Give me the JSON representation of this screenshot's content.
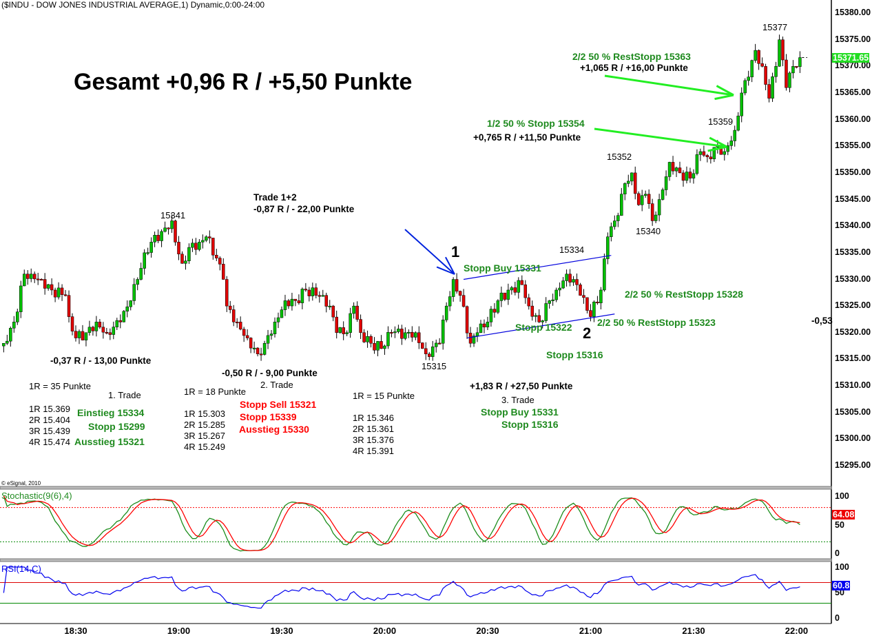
{
  "header": {
    "title": "($INDU - DOW JONES INDUSTRIAL AVERAGE,1) Dynamic,0:00-24:00",
    "copyright": "© eSignal, 2010"
  },
  "colors": {
    "up": "#00c000",
    "down": "#e00000",
    "annotation_green": "#1e8a1e",
    "annotation_red": "#ff0000",
    "arrow_green": "#22ee22",
    "arrow_blue": "#0022dd",
    "last_price_tag": "#22dd22",
    "stoch_tag": "#ee0000",
    "rsi_tag": "#0000ee"
  },
  "chart_data": {
    "type": "candlestick",
    "title": "($INDU - DOW JONES INDUSTRIAL AVERAGE,1) Dynamic,0:00-24:00",
    "x_unit": "minutes after 18:00 (1-minute bars)",
    "keyframes_minute": [
      9,
      12,
      15,
      17,
      20,
      23,
      27,
      28,
      30,
      33,
      36,
      39,
      43,
      46,
      48,
      50,
      52,
      55,
      58,
      59,
      61,
      63,
      66,
      68,
      71,
      73,
      74,
      77,
      80,
      83,
      85,
      88,
      91,
      94,
      97,
      100,
      102,
      104,
      106,
      109,
      111,
      113,
      116,
      119,
      122,
      126,
      129,
      132,
      136,
      138,
      140,
      142,
      145,
      147,
      150,
      153,
      156,
      160,
      162,
      165,
      168,
      170,
      173,
      175,
      177,
      180,
      183,
      185,
      188,
      190,
      192,
      194,
      196,
      198,
      200,
      203,
      206,
      209,
      212,
      214,
      217,
      219,
      222,
      224,
      226,
      228,
      230,
      232,
      234,
      235,
      237,
      239,
      241
    ],
    "keyframes_close": [
      15318,
      15322,
      15331,
      15331,
      15330,
      15328,
      15327,
      15323,
      15319,
      15320,
      15322,
      15320,
      15322,
      15326,
      15330,
      15335,
      15337,
      15339,
      15341,
      15337,
      15333,
      15336,
      15337,
      15338,
      15334,
      15330,
      15325,
      15322,
      15319,
      15316,
      15318,
      15322,
      15326,
      15326,
      15328,
      15327,
      15327,
      15325,
      15320,
      15320,
      15325,
      15320,
      15318,
      15317,
      15320,
      15320,
      15320,
      15316,
      15318,
      15325,
      15330,
      15327,
      15318,
      15320,
      15322,
      15326,
      15328,
      15329,
      15325,
      15322,
      15326,
      15328,
      15331,
      15330,
      15327,
      15323,
      15328,
      15338,
      15342,
      15348,
      15350,
      15344,
      15346,
      15341,
      15345,
      15352,
      15350,
      15349,
      15354,
      15353,
      15355,
      15354,
      15358,
      15365,
      15368,
      15373,
      15370,
      15364,
      15370,
      15375,
      15366,
      15370,
      15371.65
    ],
    "y_ticks": [
      "15380.00",
      "15375.00",
      "15370.00",
      "15365.00",
      "15360.00",
      "15355.00",
      "15350.00",
      "15345.00",
      "15340.00",
      "15335.00",
      "15330.00",
      "15325.00",
      "15320.00",
      "15315.00",
      "15310.00",
      "15305.00",
      "15300.00",
      "15295.00"
    ],
    "ylim": [
      15292,
      15382
    ],
    "x_ticks": [
      "18:30",
      "19:00",
      "19:30",
      "20:00",
      "20:30",
      "21:00",
      "21:30",
      "22:00"
    ],
    "last_price": "15371.65",
    "channel": {
      "upper": [
        [
          143,
          15330
        ],
        [
          186,
          15334.5
        ]
      ],
      "lower": [
        [
          144,
          15319
        ],
        [
          187,
          15323.5
        ]
      ]
    },
    "indicators": {
      "stochastic": {
        "label": "Stochastic(9(6),4)",
        "k": 9,
        "smooth": 6,
        "d": 4,
        "levels": [
          80,
          20
        ],
        "ticks": [
          "100",
          "50",
          "0"
        ],
        "last": "64.08"
      },
      "rsi": {
        "label": "RSI(14,C)",
        "period": 14,
        "levels": [
          70,
          30
        ],
        "ticks": [
          "100",
          "50",
          "0"
        ],
        "last": "60.8"
      }
    }
  },
  "annotations": {
    "headline": "Gesamt +0,96 R / +5,50 Punkte",
    "high_15341": "15341",
    "trade12_title": "Trade 1+2",
    "trade12_result": "-0,87 R / - 22,00 Punkte",
    "trade1_result": "-0,37 R / - 13,00 Punkte",
    "trade2_result": "-0,50 R / - 9,00 Punkte",
    "trade2_label": "2. Trade",
    "trade1_r": "1R = 35 Punkte",
    "trade1_label": "1. Trade",
    "trade1_levels": [
      "1R 15.369",
      "2R 15.404",
      "3R 15.439",
      "4R 15.474"
    ],
    "trade1_orders": [
      "Einstieg 15334",
      "Stopp 15299",
      "Ausstieg 15321"
    ],
    "trade2_r": "1R = 18 Punkte",
    "trade2_levels": [
      "1R 15.303",
      "2R 15.285",
      "3R 15.267",
      "4R 15.249"
    ],
    "trade2_orders": [
      "Stopp Sell 15321",
      "Stopp 15339",
      "Ausstieg 15330"
    ],
    "trade3_r": "1R = 15 Punkte",
    "trade3_levels": [
      "1R 15.346",
      "2R 15.361",
      "3R 15.376",
      "4R 15.391"
    ],
    "low_15315": "15315",
    "marker_1": "1",
    "marker_2": "2",
    "stopp_buy": "Stopp Buy 15331",
    "high_15334": "15334",
    "stopp_15322": "Stopp 15322",
    "reststopp_15328": "2/2 50 % RestStopp 15328",
    "reststopp_15323": "2/2 50 % RestStopp 15323",
    "stopp_15316": "Stopp 15316",
    "trade3_result": "+1,83 R / +27,50 Punkte",
    "trade3_label": "3. Trade",
    "trade3_orders": [
      "Stopp Buy 15331",
      "Stopp 15316"
    ],
    "low_15340": "15340",
    "high_15352": "15352",
    "high_15359": "15359",
    "high_15377": "15377",
    "half1_stop": "1/2 50 % Stopp 15354",
    "half1_result": "+0,765 R / +11,50 Punkte",
    "half2_stop": "2/2 50 % RestStopp 15363",
    "half2_result": "+1,065 R / +16,00 Punkte",
    "side_value": "-0,53"
  }
}
